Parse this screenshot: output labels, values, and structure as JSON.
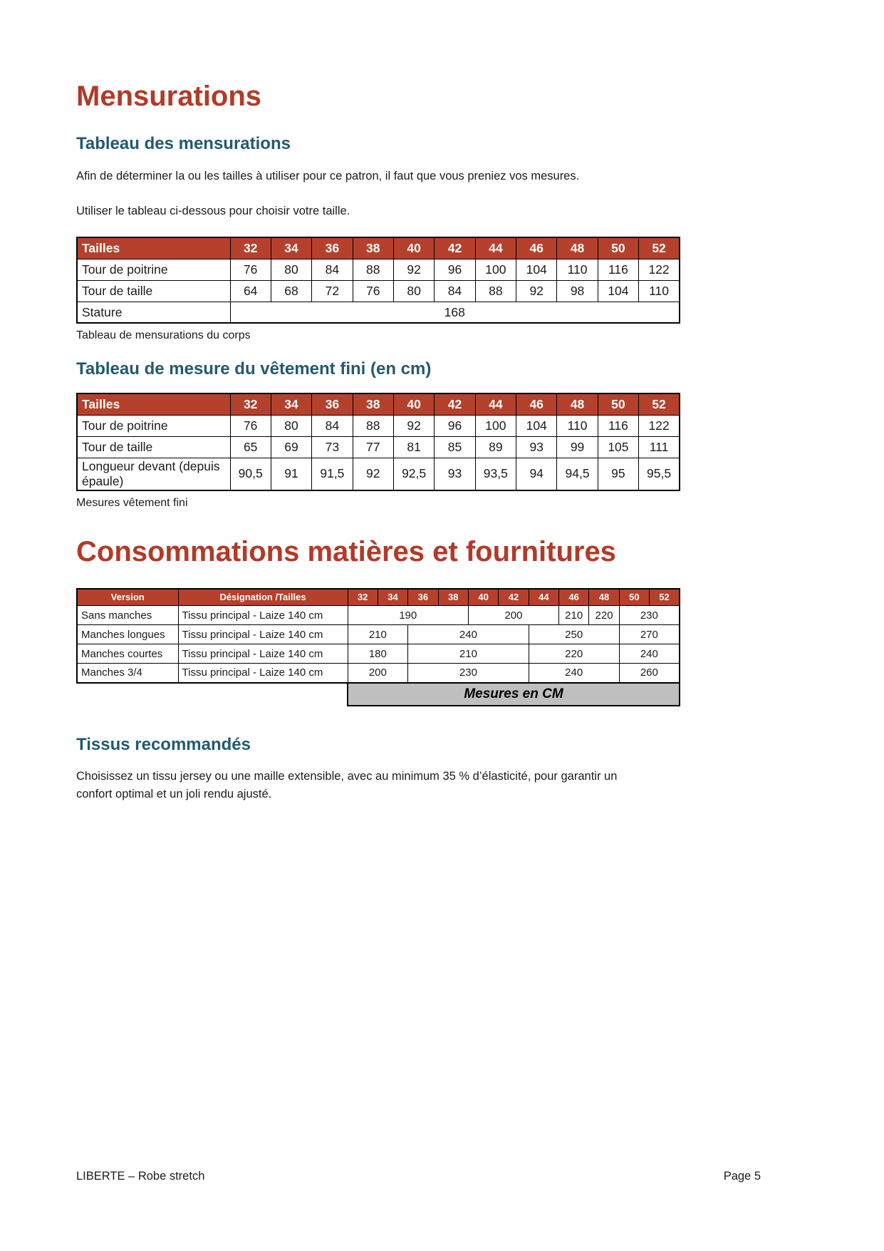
{
  "colors": {
    "heading_red": "#B23A28",
    "heading_teal": "#235A6E",
    "table_header_bg": "#B5412C",
    "table_header_text": "#FFFFFF",
    "unit_band_bg": "#BFBFBF"
  },
  "mensurations": {
    "heading": "Mensurations",
    "tableau_mensurations": {
      "heading": "Tableau des mensurations",
      "para1": "Afin de déterminer la ou les tailles à utiliser pour ce patron, il faut que vous preniez vos mesures.",
      "para2": "Utiliser le tableau ci-dessous pour choisir votre taille.",
      "caption": "Tableau de mensurations du corps"
    },
    "tableau_vetement_fini": {
      "heading": "Tableau de mesure du vêtement fini (en cm)",
      "caption": "Mesures vêtement fini"
    }
  },
  "tables": {
    "body_measurements": {
      "corner_label": "Tailles",
      "sizes": [
        "32",
        "34",
        "36",
        "38",
        "40",
        "42",
        "44",
        "46",
        "48",
        "50",
        "52"
      ],
      "rows": [
        {
          "label": "Tour de poitrine",
          "values": [
            "76",
            "80",
            "84",
            "88",
            "92",
            "96",
            "100",
            "104",
            "110",
            "116",
            "122"
          ]
        },
        {
          "label": "Tour de taille",
          "values": [
            "64",
            "68",
            "72",
            "76",
            "80",
            "84",
            "88",
            "92",
            "98",
            "104",
            "110"
          ]
        }
      ],
      "stature": {
        "label": "Stature",
        "value": "168"
      }
    },
    "finished_garment": {
      "corner_label": "Tailles",
      "sizes": [
        "32",
        "34",
        "36",
        "38",
        "40",
        "42",
        "44",
        "46",
        "48",
        "50",
        "52"
      ],
      "rows": [
        {
          "label": "Tour de poitrine",
          "values": [
            "76",
            "80",
            "84",
            "88",
            "92",
            "96",
            "100",
            "104",
            "110",
            "116",
            "122"
          ]
        },
        {
          "label": "Tour de taille",
          "values": [
            "65",
            "69",
            "73",
            "77",
            "81",
            "85",
            "89",
            "93",
            "99",
            "105",
            "111"
          ]
        },
        {
          "label": "Longueur devant (depuis épaule)",
          "values": [
            "90,5",
            "91",
            "91,5",
            "92",
            "92,5",
            "93",
            "93,5",
            "94",
            "94,5",
            "95",
            "95,5"
          ]
        }
      ]
    },
    "consumption": {
      "header_version": "Version",
      "header_designation": "Désignation /Tailles",
      "sizes": [
        "32",
        "34",
        "36",
        "38",
        "40",
        "42",
        "44",
        "46",
        "48",
        "50",
        "52"
      ],
      "rows": [
        {
          "version": "Sans manches",
          "designation": "Tissu principal - Laize 140 cm",
          "cells": [
            {
              "value": "190",
              "span": 4
            },
            {
              "value": "200",
              "span": 3
            },
            {
              "value": "210",
              "span": 1
            },
            {
              "value": "220",
              "span": 1
            },
            {
              "value": "230",
              "span": 2
            }
          ]
        },
        {
          "version": "Manches longues",
          "designation": "Tissu principal - Laize 140 cm",
          "cells": [
            {
              "value": "210",
              "span": 2
            },
            {
              "value": "240",
              "span": 4
            },
            {
              "value": "250",
              "span": 3
            },
            {
              "value": "270",
              "span": 2
            }
          ]
        },
        {
          "version": "Manches courtes",
          "designation": "Tissu principal - Laize 140 cm",
          "cells": [
            {
              "value": "180",
              "span": 2
            },
            {
              "value": "210",
              "span": 4
            },
            {
              "value": "220",
              "span": 3
            },
            {
              "value": "240",
              "span": 2
            }
          ]
        },
        {
          "version": "Manches 3/4",
          "designation": "Tissu principal - Laize 140 cm",
          "cells": [
            {
              "value": "200",
              "span": 2
            },
            {
              "value": "230",
              "span": 4
            },
            {
              "value": "240",
              "span": 3
            },
            {
              "value": "260",
              "span": 2
            }
          ]
        }
      ],
      "unit_note": "Mesures en CM"
    }
  },
  "consommations": {
    "heading": "Consommations matières et fournitures"
  },
  "tissus": {
    "heading": "Tissus recommandés",
    "para": "Choisissez un tissu jersey ou une maille extensible, avec au minimum 35 % d’élasticité, pour garantir un confort optimal et un joli rendu ajusté."
  },
  "footer": {
    "left": "LIBERTE – Robe stretch",
    "right": "Page 5"
  }
}
